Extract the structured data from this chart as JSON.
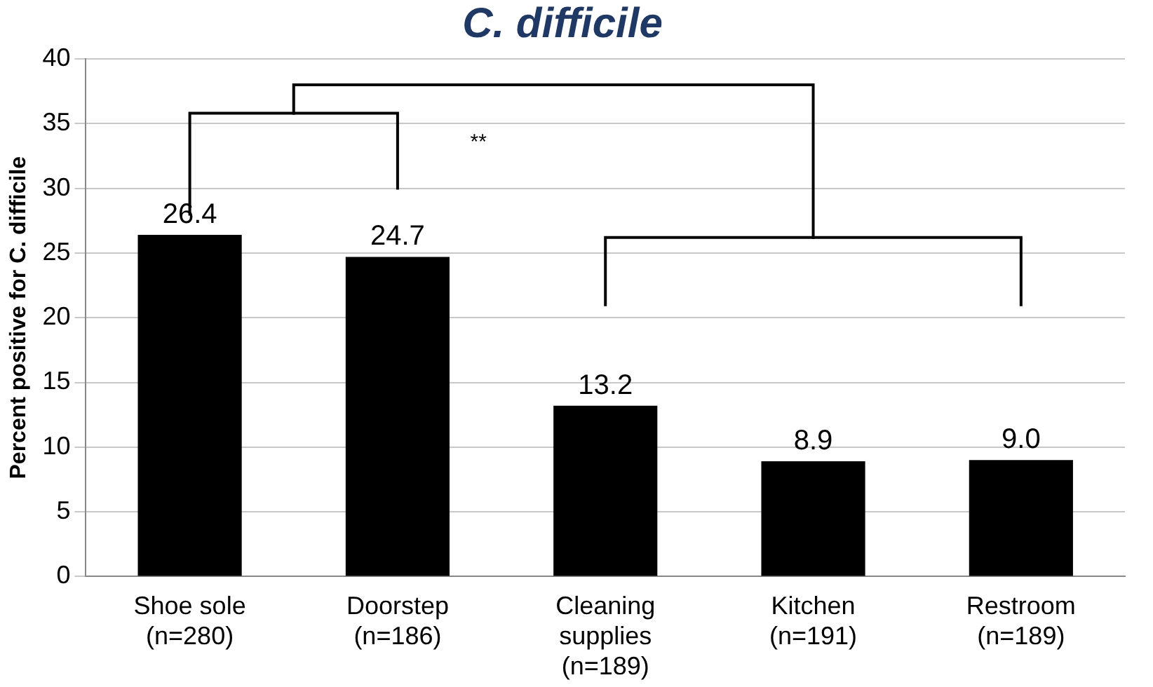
{
  "chart_data": {
    "type": "bar",
    "title": "C. difficile",
    "ylabel": "Percent positive for C. difficile",
    "categories": [
      "Shoe sole\n(n=280)",
      "Doorstep\n(n=186)",
      "Cleaning\nsupplies\n(n=189)",
      "Kitchen\n(n=191)",
      "Restroom\n(n=189)"
    ],
    "values": [
      26.4,
      24.7,
      13.2,
      8.9,
      9.0
    ],
    "value_labels": [
      "26.4",
      "24.7",
      "13.2",
      "8.9",
      "9.0"
    ],
    "color": "#000000",
    "ylim": [
      0,
      40
    ],
    "yticks": [
      0,
      5,
      10,
      15,
      20,
      25,
      30,
      35,
      40
    ],
    "grid": "y",
    "annotations": [
      "**"
    ]
  }
}
